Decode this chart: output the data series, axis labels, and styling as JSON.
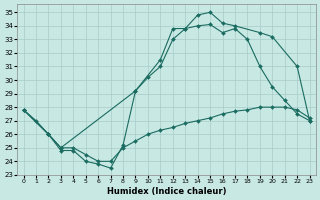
{
  "xlabel": "Humidex (Indice chaleur)",
  "background_color": "#c8e8e4",
  "grid_color": "#a8ccc8",
  "line_color": "#1a6b60",
  "xlim": [
    -0.5,
    23.5
  ],
  "ylim": [
    23,
    35.6
  ],
  "yticks": [
    23,
    24,
    25,
    26,
    27,
    28,
    29,
    30,
    31,
    32,
    33,
    34,
    35
  ],
  "xticks": [
    0,
    1,
    2,
    3,
    4,
    5,
    6,
    7,
    8,
    9,
    10,
    11,
    12,
    13,
    14,
    15,
    16,
    17,
    18,
    19,
    20,
    21,
    22,
    23
  ],
  "series": [
    {
      "x": [
        0,
        1,
        2,
        3,
        4,
        5,
        6,
        7,
        8,
        9,
        10,
        11,
        12,
        13,
        14,
        15,
        16,
        17,
        18,
        19,
        20,
        21,
        22,
        23
      ],
      "y": [
        27.8,
        27.0,
        26.0,
        24.8,
        24.8,
        24.0,
        23.8,
        23.5,
        25.2,
        29.2,
        30.2,
        31.0,
        33.0,
        33.8,
        34.0,
        34.1,
        33.5,
        33.8,
        33.0,
        31.0,
        29.5,
        28.5,
        27.5,
        27.0
      ]
    },
    {
      "x": [
        0,
        2,
        3,
        9,
        11,
        12,
        13,
        14,
        15,
        16,
        17,
        19,
        20,
        22,
        23
      ],
      "y": [
        27.8,
        26.0,
        25.0,
        29.2,
        31.5,
        33.8,
        33.8,
        34.8,
        35.0,
        34.2,
        34.0,
        33.5,
        33.2,
        31.0,
        27.0
      ]
    },
    {
      "x": [
        0,
        2,
        3,
        4,
        5,
        6,
        7,
        8,
        9,
        10,
        11,
        12,
        13,
        14,
        15,
        16,
        17,
        18,
        19,
        20,
        21,
        22,
        23
      ],
      "y": [
        27.8,
        26.0,
        25.0,
        25.0,
        24.5,
        24.0,
        24.0,
        25.0,
        25.5,
        26.0,
        26.3,
        26.5,
        26.8,
        27.0,
        27.2,
        27.5,
        27.7,
        27.8,
        28.0,
        28.0,
        28.0,
        27.8,
        27.2
      ]
    }
  ]
}
